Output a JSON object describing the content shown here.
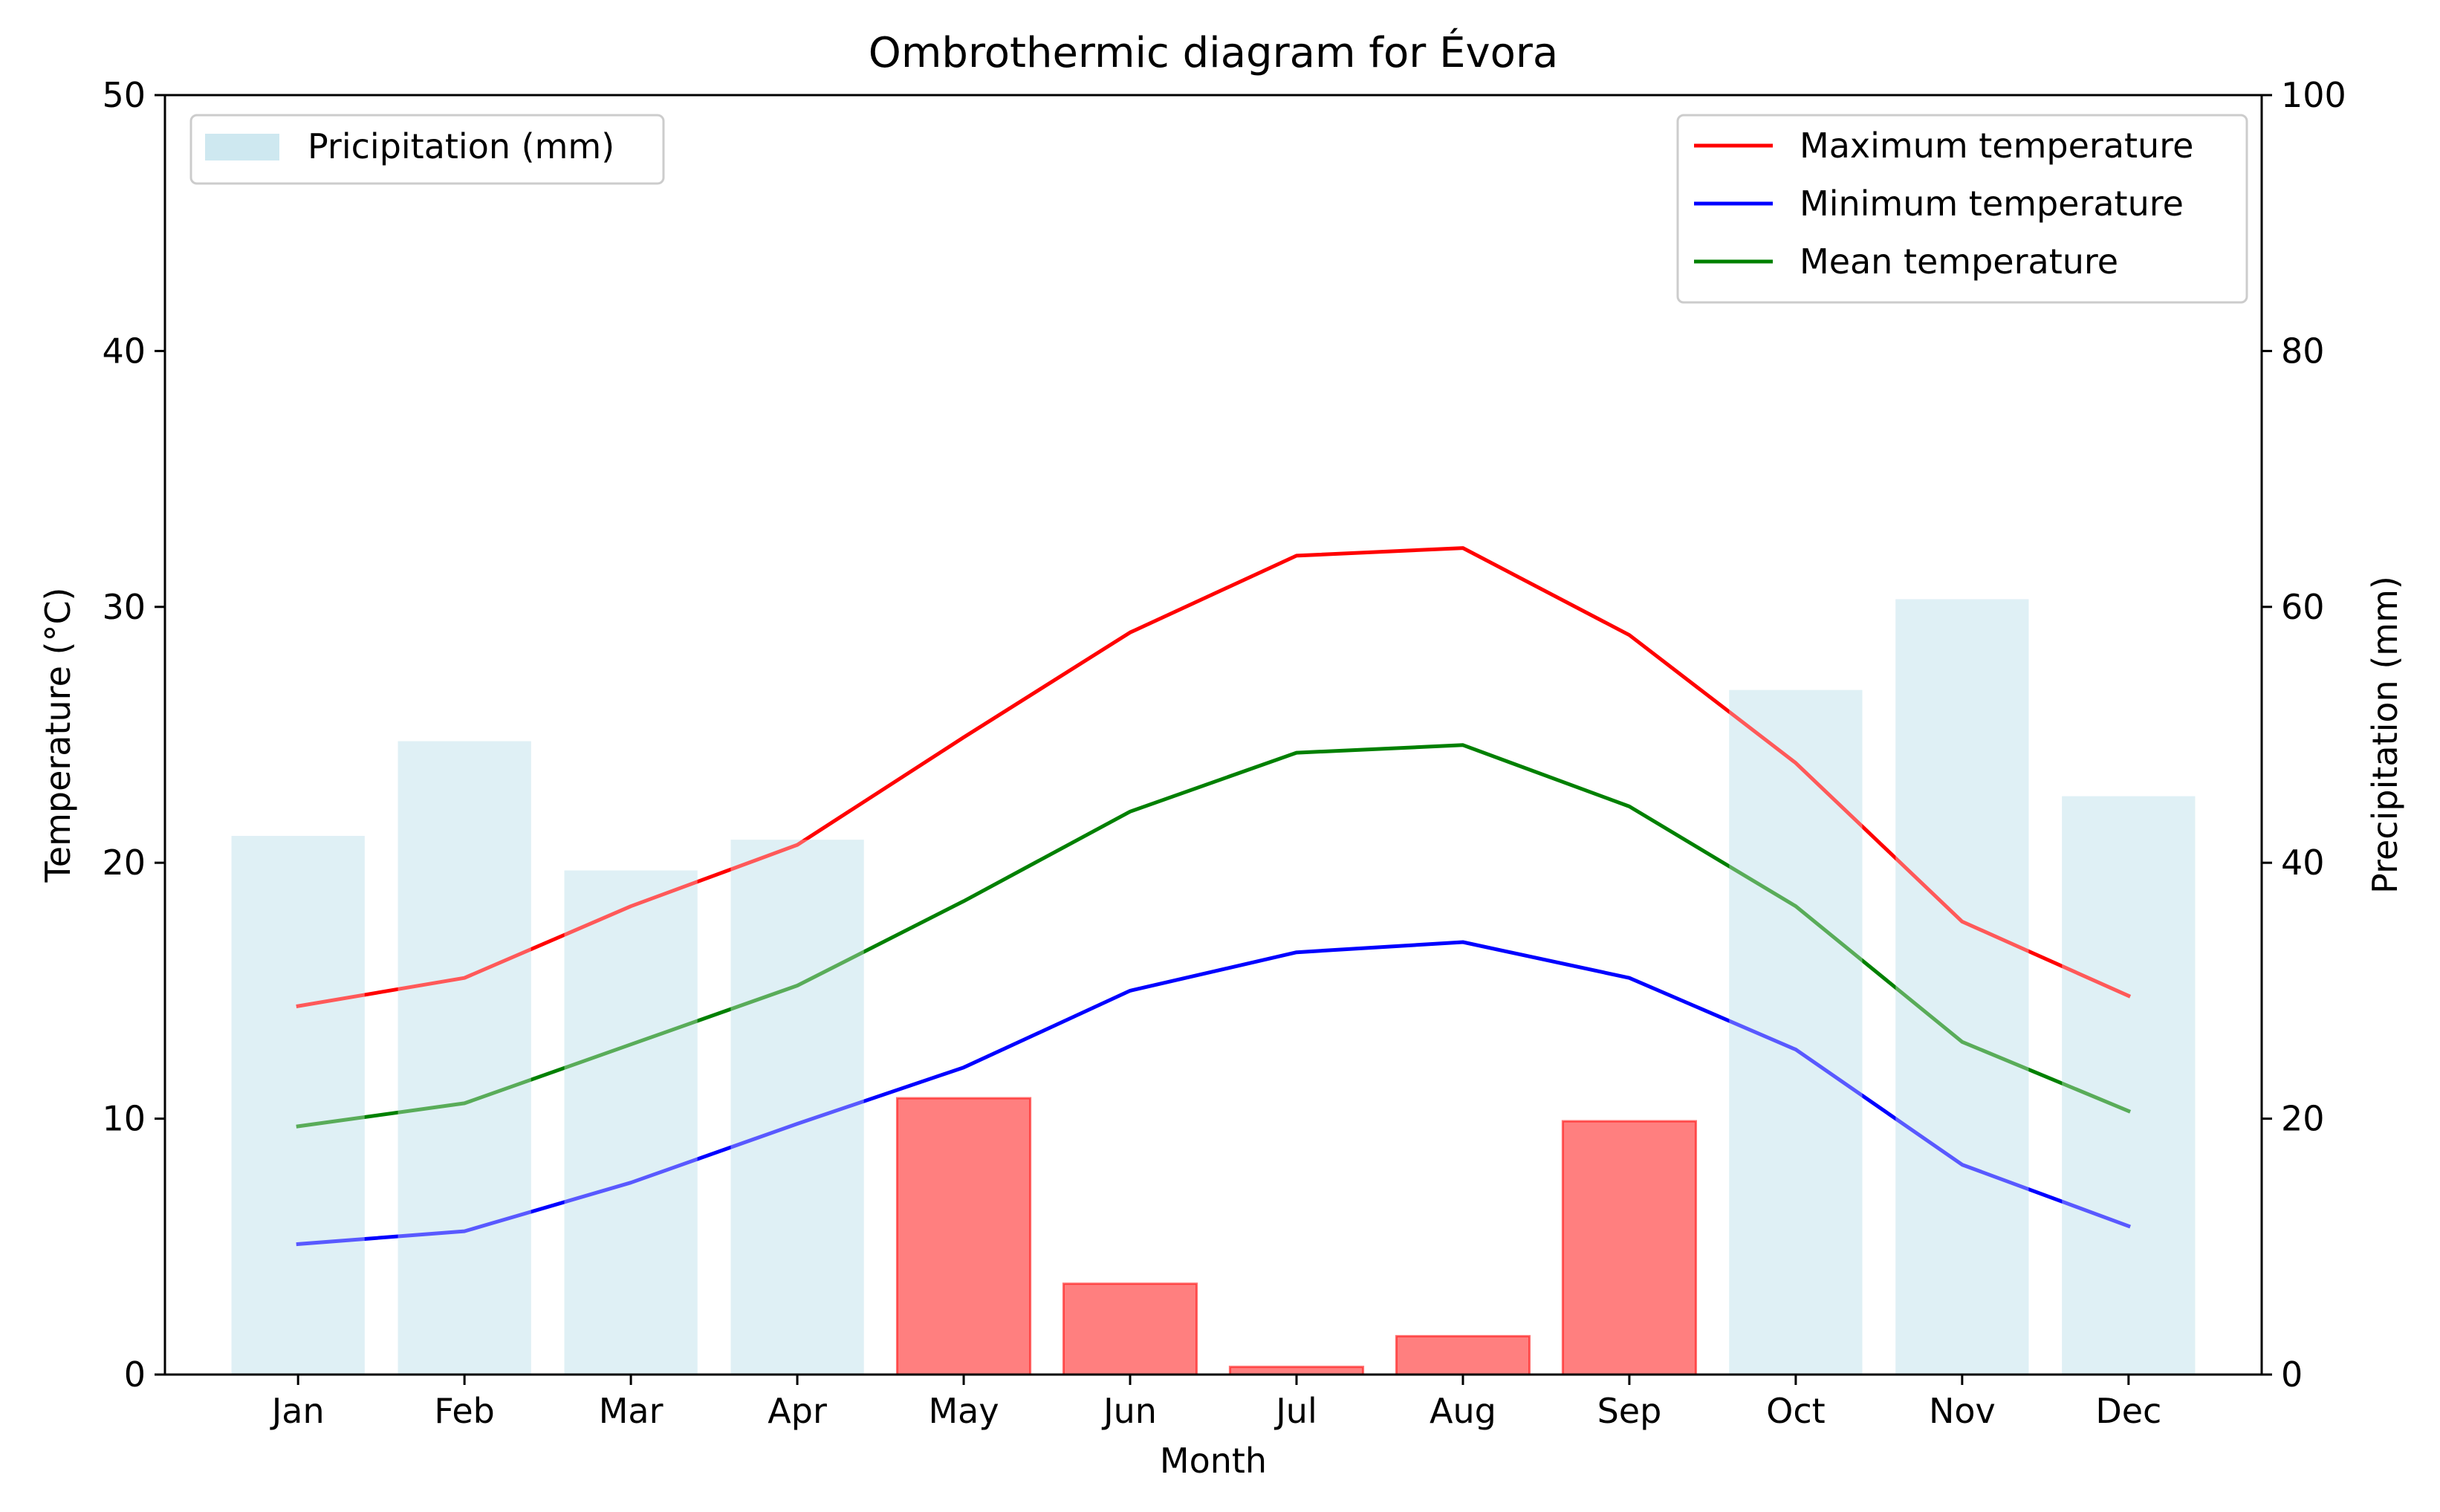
{
  "chart_data": {
    "type": "bar+line",
    "title": "Ombrothermic diagram for Évora",
    "xlabel": "Month",
    "ylabel_left": "Temperature (°C)",
    "ylabel_right": "Precipitation (mm)",
    "ylim_left": [
      0,
      50
    ],
    "ylim_right": [
      0,
      100
    ],
    "yticks_left": [
      0,
      10,
      20,
      30,
      40,
      50
    ],
    "yticks_right": [
      0,
      20,
      40,
      60,
      80,
      100
    ],
    "grid": false,
    "categories": [
      "Jan",
      "Feb",
      "Mar",
      "Apr",
      "May",
      "Jun",
      "Jul",
      "Aug",
      "Sep",
      "Oct",
      "Nov",
      "Dec"
    ],
    "precipitation": {
      "name": "Pricipitation (mm)",
      "axis": "right",
      "values": [
        42.1,
        49.5,
        39.4,
        41.8,
        21.6,
        7.1,
        0.6,
        3.0,
        19.8,
        53.5,
        60.6,
        45.2
      ],
      "colors": [
        "#add8e6",
        "#add8e6",
        "#add8e6",
        "#add8e6",
        "#ff0000",
        "#ff0000",
        "#ff0000",
        "#ff0000",
        "#ff0000",
        "#add8e6",
        "#add8e6",
        "#add8e6"
      ],
      "opacities": [
        0.6,
        0.6,
        0.6,
        0.6,
        0.5,
        0.5,
        0.5,
        0.5,
        0.5,
        0.6,
        0.6,
        0.6
      ]
    },
    "series": [
      {
        "name": "Maximum temperature",
        "color": "#ff0000",
        "axis": "left",
        "values": [
          14.4,
          15.5,
          18.3,
          20.7,
          24.9,
          29.0,
          32.0,
          32.3,
          28.9,
          23.9,
          17.7,
          14.8
        ]
      },
      {
        "name": "Minimum temperature",
        "color": "#0000ff",
        "axis": "left",
        "values": [
          5.1,
          5.6,
          7.5,
          9.8,
          12.0,
          15.0,
          16.5,
          16.9,
          15.5,
          12.7,
          8.2,
          5.8
        ]
      },
      {
        "name": "Mean temperature",
        "color": "#008000",
        "axis": "left",
        "values": [
          9.7,
          10.6,
          12.9,
          15.2,
          18.5,
          22.0,
          24.3,
          24.6,
          22.2,
          18.3,
          13.0,
          10.3
        ]
      }
    ],
    "legend_left": {
      "placement": "upper-left",
      "entries": [
        "Pricipitation (mm)"
      ]
    },
    "legend_right": {
      "placement": "upper-right",
      "entries": [
        "Maximum temperature",
        "Minimum temperature",
        "Mean temperature"
      ]
    }
  }
}
